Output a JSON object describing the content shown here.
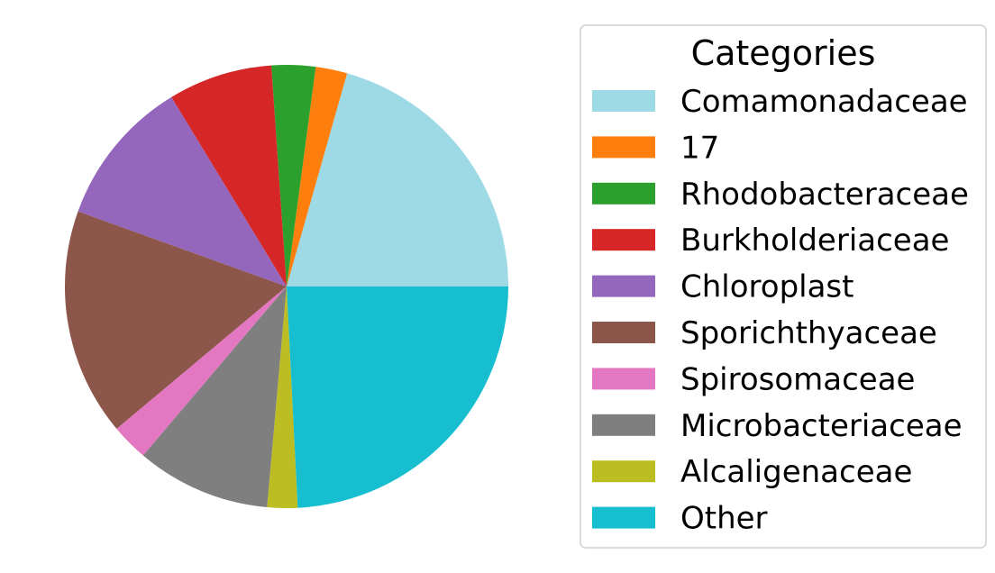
{
  "chart_data": {
    "type": "pie",
    "title": "",
    "legend": {
      "title": "Categories",
      "placement": "right"
    },
    "categories": [
      "Comamonadaceae",
      "17",
      "Rhodobacteraceae",
      "Burkholderiaceae",
      "Chloroplast",
      "Sporichthyaceae",
      "Spirosomaceae",
      "Microbacteriaceae",
      "Alcaligenaceae",
      "Other"
    ],
    "values": [
      20.6,
      2.3,
      3.2,
      7.6,
      10.8,
      16.6,
      2.7,
      9.8,
      2.2,
      24.2
    ],
    "colors": [
      "#9edae5",
      "#ff7f0e",
      "#2ca02c",
      "#d62728",
      "#9467bd",
      "#8c564b",
      "#e377c2",
      "#7f7f7f",
      "#bcbd22",
      "#17becf"
    ],
    "start_angle_deg": 0,
    "direction": "counterclockwise"
  }
}
